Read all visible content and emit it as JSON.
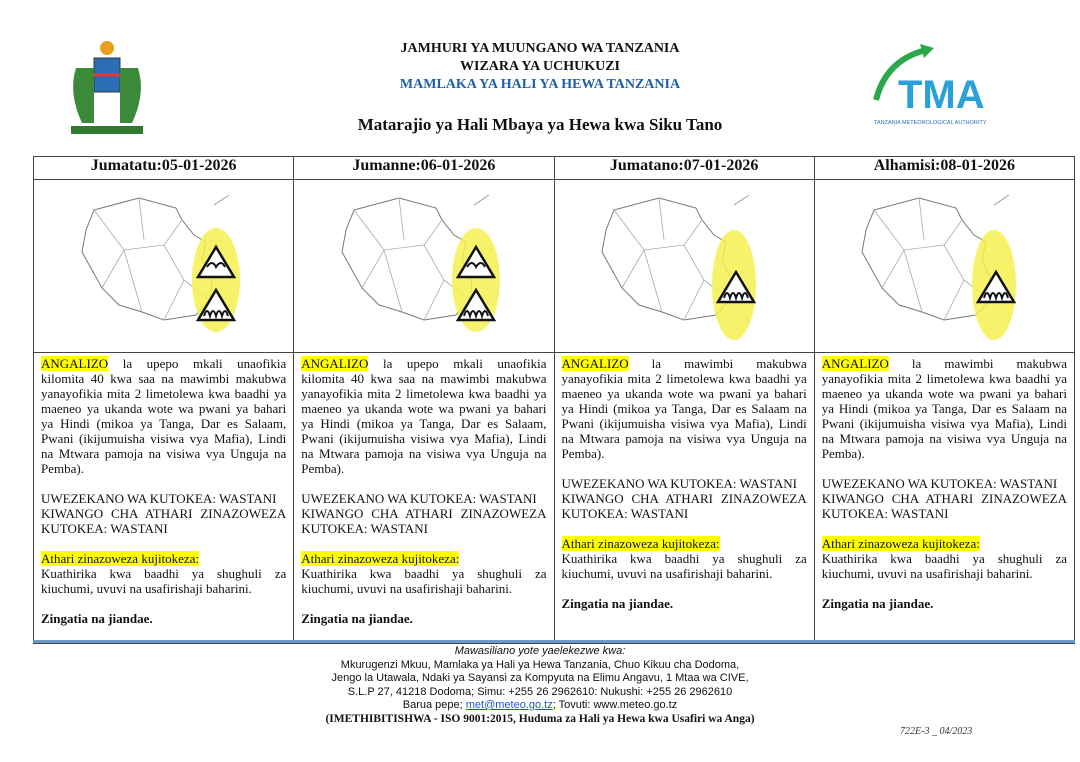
{
  "header": {
    "line1": "JAMHURI YA MUUNGANO WA TANZANIA",
    "line2": "WIZARA YA UCHUKUZI",
    "line3": "MAMLAKA YA HALI YA HEWA TANZANIA",
    "subtitle": "Matarajio ya Hali Mbaya ya Hewa kwa Siku Tano",
    "logo_text": "TMA",
    "logo_sub": "TANZANIA METEOROLOGICAL AUTHORITY"
  },
  "colors": {
    "highlight": "#ffff00",
    "accent": "#1f5fa8"
  },
  "days": [
    {
      "title": "Jumatatu:05-01-2026",
      "alert": "ANGALIZO",
      "body": " la upepo mkali unaofikia kilomita 40 kwa saa na mawimbi makubwa yanayofikia mita 2 limetolewa kwa baadhi ya maeneo ya ukanda wote wa pwani ya bahari ya Hindi (mikoa ya Tanga, Dar es Salaam, Pwani (ikijumuisha visiwa vya Mafia), Lindi na Mtwara pamoja na visiwa vya Unguja na Pemba).",
      "likelihood": "UWEZEKANO WA KUTOKEA: WASTANI",
      "impact": "KIWANGO CHA ATHARI ZINAZOWEZA KUTOKEA: WASTANI",
      "effects_label": "Athari zinazoweza kujitokeza:",
      "effects": "Kuathirika kwa baadhi ya shughuli za kiuchumi, uvuvi na usafirishaji baharini.",
      "closing": "Zingatia na jiandae.",
      "icons": [
        "wind-warning",
        "wave-warning"
      ]
    },
    {
      "title": "Jumanne:06-01-2026",
      "alert": "ANGALIZO",
      "body": " la upepo mkali unaofikia kilomita 40 kwa saa na mawimbi makubwa yanayofikia mita 2 limetolewa kwa baadhi ya maeneo ya ukanda wote wa pwani ya bahari ya Hindi (mikoa ya Tanga, Dar es Salaam, Pwani (ikijumuisha visiwa vya Mafia), Lindi na Mtwara pamoja na visiwa vya Unguja na Pemba).",
      "likelihood": "UWEZEKANO WA KUTOKEA: WASTANI",
      "impact": "KIWANGO CHA ATHARI ZINAZOWEZA KUTOKEA: WASTANI",
      "effects_label": "Athari zinazoweza kujitokeza:",
      "effects": "Kuathirika kwa baadhi ya shughuli za kiuchumi, uvuvi na usafirishaji baharini.",
      "closing": "Zingatia na jiandae.",
      "icons": [
        "wind-warning",
        "wave-warning"
      ]
    },
    {
      "title": "Jumatano:07-01-2026",
      "alert": "ANGALIZO",
      "body": " la mawimbi makubwa yanayofikia mita 2 limetolewa kwa baadhi ya maeneo ya ukanda wote wa pwani ya bahari ya Hindi (mikoa ya Tanga, Dar es Salaam na Pwani (ikijumuisha visiwa vya Mafia), Lindi na Mtwara pamoja na visiwa vya Unguja na Pemba).",
      "likelihood": "UWEZEKANO WA KUTOKEA: WASTANI",
      "impact": "KIWANGO CHA ATHARI ZINAZOWEZA KUTOKEA: WASTANI",
      "effects_label": "Athari zinazoweza kujitokeza:",
      "effects": "Kuathirika kwa baadhi ya shughuli za kiuchumi, uvuvi na usafirishaji baharini.",
      "closing": "Zingatia na jiandae.",
      "icons": [
        "wave-warning"
      ]
    },
    {
      "title": "Alhamisi:08-01-2026",
      "alert": "ANGALIZO",
      "body": " la mawimbi makubwa yanayofikia mita 2 limetolewa kwa baadhi ya maeneo ya ukanda wote wa pwani ya bahari ya Hindi (mikoa ya Tanga, Dar es Salaam na Pwani (ikijumuisha visiwa vya Mafia), Lindi na Mtwara pamoja na visiwa vya Unguja na Pemba).",
      "likelihood": "UWEZEKANO WA KUTOKEA: WASTANI",
      "impact": "KIWANGO CHA ATHARI ZINAZOWEZA KUTOKEA: WASTANI",
      "effects_label": "Athari zinazoweza kujitokeza:",
      "effects": "Kuathirika kwa baadhi ya shughuli za kiuchumi, uvuvi na usafirishaji baharini.",
      "closing": "Zingatia na jiandae.",
      "icons": [
        "wave-warning"
      ]
    }
  ],
  "footer": {
    "intro": "Mawasiliano yote yaelekezwe kwa:",
    "line1": "Mkurugenzi Mkuu, Mamlaka ya Hali ya Hewa Tanzania, Chuo Kikuu cha Dodoma,",
    "line2": "Jengo la Utawala, Ndaki ya Sayansi za Kompyuta na Elimu Angavu, 1 Mtaa wa CIVE,",
    "line3": "S.L.P 27, 41218 Dodoma; Simu: +255 26 2962610: Nukushi: +255 26 2962610",
    "email_label": "Barua pepe; ",
    "email": "met@meteo.go.tz",
    "web": "; Tovuti: www.meteo.go.tz",
    "iso": "(IMETHIBITISHWA - ISO 9001:2015, Huduma za Hali ya Hewa kwa Usafiri wa Anga)",
    "code": "722E-3 _ 04/2023"
  }
}
